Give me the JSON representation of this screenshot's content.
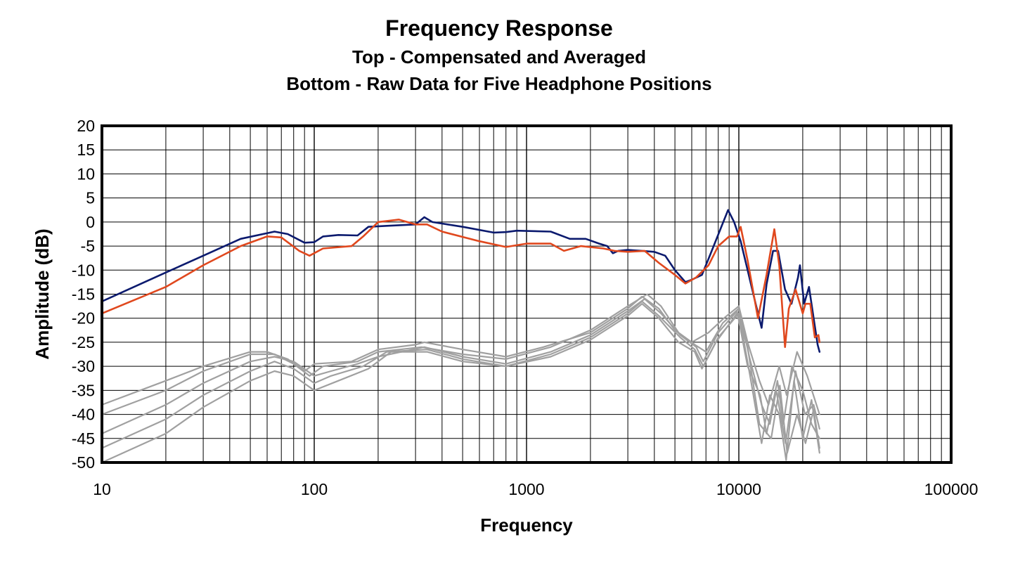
{
  "title": "Frequency Response",
  "subtitle_top": "Top -  Compensated and Averaged",
  "subtitle_bottom": "Bottom - Raw Data for Five Headphone Positions",
  "chart_data": {
    "type": "line",
    "xscale": "log",
    "xlabel": "Frequency",
    "ylabel": "Amplitude (dB)",
    "xlim": [
      10,
      100000
    ],
    "ylim": [
      -50,
      20
    ],
    "xticks": [
      "10",
      "100",
      "1000",
      "10000",
      "100000"
    ],
    "yticks": [
      "20",
      "15",
      "10",
      "5",
      "0",
      "-5",
      "-10",
      "-15",
      "-20",
      "-25",
      "-30",
      "-35",
      "-40",
      "-45",
      "-50"
    ],
    "grid": true,
    "series": [
      {
        "color": "#0b1a6e",
        "group": "compensated",
        "points": [
          [
            10,
            -16.5
          ],
          [
            20,
            -10.5
          ],
          [
            30,
            -7
          ],
          [
            45,
            -3.5
          ],
          [
            65,
            -2
          ],
          [
            75,
            -2.5
          ],
          [
            90,
            -4.3
          ],
          [
            100,
            -4.2
          ],
          [
            110,
            -3
          ],
          [
            130,
            -2.7
          ],
          [
            160,
            -2.8
          ],
          [
            180,
            -1
          ],
          [
            220,
            -0.8
          ],
          [
            300,
            -0.5
          ],
          [
            330,
            1
          ],
          [
            360,
            0
          ],
          [
            500,
            -1
          ],
          [
            700,
            -2.2
          ],
          [
            800,
            -2.1
          ],
          [
            900,
            -1.8
          ],
          [
            1300,
            -2
          ],
          [
            1600,
            -3.5
          ],
          [
            1900,
            -3.5
          ],
          [
            2200,
            -4.5
          ],
          [
            2400,
            -5
          ],
          [
            2550,
            -6.5
          ],
          [
            2700,
            -6
          ],
          [
            3000,
            -5.8
          ],
          [
            3500,
            -6
          ],
          [
            4000,
            -6.2
          ],
          [
            4500,
            -7
          ],
          [
            5000,
            -10
          ],
          [
            5600,
            -12.5
          ],
          [
            6000,
            -12
          ],
          [
            6700,
            -11
          ],
          [
            7300,
            -7
          ],
          [
            8100,
            -2
          ],
          [
            8900,
            2.5
          ],
          [
            9500,
            0
          ],
          [
            10200,
            -4
          ],
          [
            11000,
            -10
          ],
          [
            12000,
            -17
          ],
          [
            12800,
            -22
          ],
          [
            13500,
            -13
          ],
          [
            14500,
            -6
          ],
          [
            15300,
            -6
          ],
          [
            16500,
            -14
          ],
          [
            17700,
            -17
          ],
          [
            19000,
            -11.5
          ],
          [
            19400,
            -9
          ],
          [
            20300,
            -17
          ],
          [
            21400,
            -13.5
          ],
          [
            22500,
            -20
          ],
          [
            23500,
            -25.5
          ],
          [
            24000,
            -27
          ]
        ]
      },
      {
        "color": "#e0481e",
        "group": "compensated",
        "points": [
          [
            10,
            -19
          ],
          [
            20,
            -13.5
          ],
          [
            30,
            -9
          ],
          [
            45,
            -5
          ],
          [
            60,
            -3
          ],
          [
            70,
            -3.2
          ],
          [
            85,
            -6
          ],
          [
            95,
            -7
          ],
          [
            110,
            -5.5
          ],
          [
            150,
            -5
          ],
          [
            170,
            -3
          ],
          [
            200,
            0
          ],
          [
            250,
            0.5
          ],
          [
            300,
            -0.5
          ],
          [
            340,
            -0.5
          ],
          [
            400,
            -2
          ],
          [
            600,
            -4
          ],
          [
            800,
            -5.2
          ],
          [
            1000,
            -4.5
          ],
          [
            1300,
            -4.5
          ],
          [
            1500,
            -6
          ],
          [
            1800,
            -5
          ],
          [
            2300,
            -5.5
          ],
          [
            2600,
            -6
          ],
          [
            3000,
            -6.2
          ],
          [
            3600,
            -6
          ],
          [
            4200,
            -8.5
          ],
          [
            5000,
            -11
          ],
          [
            5600,
            -12.8
          ],
          [
            6300,
            -11.5
          ],
          [
            7200,
            -9
          ],
          [
            8000,
            -5
          ],
          [
            9000,
            -3
          ],
          [
            9800,
            -3
          ],
          [
            10200,
            -1
          ],
          [
            11000,
            -8
          ],
          [
            12300,
            -20
          ],
          [
            13500,
            -11
          ],
          [
            14700,
            -1.5
          ],
          [
            15500,
            -9
          ],
          [
            16500,
            -26
          ],
          [
            17200,
            -18
          ],
          [
            18500,
            -14
          ],
          [
            20000,
            -19
          ],
          [
            20600,
            -17
          ],
          [
            21700,
            -17
          ],
          [
            22800,
            -24
          ],
          [
            23700,
            -23.5
          ],
          [
            24000,
            -25
          ]
        ]
      },
      {
        "color": "#a0a0a0",
        "group": "raw",
        "points": [
          [
            10,
            -38
          ],
          [
            20,
            -33
          ],
          [
            30,
            -30
          ],
          [
            50,
            -27
          ],
          [
            60,
            -27
          ],
          [
            75,
            -28.5
          ],
          [
            90,
            -31
          ],
          [
            100,
            -29.5
          ],
          [
            150,
            -29
          ],
          [
            200,
            -26.5
          ],
          [
            300,
            -25.5
          ],
          [
            330,
            -25
          ],
          [
            500,
            -26.5
          ],
          [
            800,
            -28
          ],
          [
            1200,
            -26
          ],
          [
            2000,
            -23
          ],
          [
            3000,
            -18
          ],
          [
            3500,
            -15.5
          ],
          [
            4200,
            -18
          ],
          [
            5000,
            -22.5
          ],
          [
            6000,
            -25
          ],
          [
            7200,
            -23
          ],
          [
            8500,
            -20
          ],
          [
            10000,
            -17.5
          ],
          [
            11000,
            -25
          ],
          [
            12500,
            -33
          ],
          [
            13800,
            -38
          ],
          [
            15500,
            -30
          ],
          [
            16800,
            -36
          ],
          [
            18800,
            -27
          ],
          [
            21000,
            -32
          ],
          [
            24000,
            -40
          ]
        ]
      },
      {
        "color": "#a0a0a0",
        "group": "raw",
        "points": [
          [
            10,
            -40
          ],
          [
            20,
            -35
          ],
          [
            30,
            -31
          ],
          [
            50,
            -27.5
          ],
          [
            65,
            -27.5
          ],
          [
            80,
            -29.5
          ],
          [
            95,
            -32
          ],
          [
            110,
            -30
          ],
          [
            160,
            -29
          ],
          [
            200,
            -27
          ],
          [
            320,
            -26
          ],
          [
            500,
            -27.5
          ],
          [
            800,
            -28.5
          ],
          [
            1300,
            -26
          ],
          [
            2000,
            -22.5
          ],
          [
            3000,
            -17.5
          ],
          [
            3700,
            -15
          ],
          [
            4300,
            -17.5
          ],
          [
            5200,
            -23
          ],
          [
            6200,
            -25.5
          ],
          [
            7000,
            -27
          ],
          [
            8400,
            -21
          ],
          [
            10000,
            -18
          ],
          [
            11200,
            -28
          ],
          [
            12800,
            -38
          ],
          [
            14000,
            -42
          ],
          [
            15000,
            -35
          ],
          [
            16600,
            -46
          ],
          [
            18500,
            -31
          ],
          [
            20500,
            -40
          ],
          [
            22500,
            -38
          ],
          [
            24000,
            -43
          ]
        ]
      },
      {
        "color": "#a0a0a0",
        "group": "raw",
        "points": [
          [
            10,
            -44
          ],
          [
            20,
            -38
          ],
          [
            30,
            -33.5
          ],
          [
            50,
            -29
          ],
          [
            65,
            -28
          ],
          [
            80,
            -29
          ],
          [
            100,
            -32
          ],
          [
            120,
            -31
          ],
          [
            160,
            -29.5
          ],
          [
            200,
            -28
          ],
          [
            330,
            -26
          ],
          [
            500,
            -28
          ],
          [
            800,
            -29.5
          ],
          [
            1300,
            -27
          ],
          [
            2000,
            -23.5
          ],
          [
            3000,
            -18.5
          ],
          [
            3600,
            -16
          ],
          [
            4300,
            -19
          ],
          [
            5300,
            -23.5
          ],
          [
            6300,
            -26
          ],
          [
            6800,
            -29
          ],
          [
            8000,
            -23
          ],
          [
            9800,
            -18.5
          ],
          [
            11000,
            -30
          ],
          [
            12600,
            -36
          ],
          [
            13500,
            -44
          ],
          [
            15200,
            -33
          ],
          [
            16200,
            -42
          ],
          [
            17800,
            -30
          ],
          [
            20000,
            -35
          ],
          [
            22000,
            -42
          ],
          [
            24000,
            -45
          ]
        ]
      },
      {
        "color": "#a0a0a0",
        "group": "raw",
        "points": [
          [
            10,
            -47
          ],
          [
            20,
            -41
          ],
          [
            30,
            -36
          ],
          [
            50,
            -31
          ],
          [
            65,
            -29
          ],
          [
            80,
            -30.5
          ],
          [
            100,
            -33.5
          ],
          [
            120,
            -32
          ],
          [
            170,
            -30
          ],
          [
            220,
            -27
          ],
          [
            340,
            -26.5
          ],
          [
            500,
            -28.5
          ],
          [
            800,
            -30
          ],
          [
            1300,
            -27.5
          ],
          [
            2000,
            -24
          ],
          [
            3000,
            -19
          ],
          [
            3500,
            -16.5
          ],
          [
            4200,
            -19.5
          ],
          [
            5300,
            -24
          ],
          [
            6200,
            -26.5
          ],
          [
            6800,
            -30
          ],
          [
            8000,
            -24
          ],
          [
            10000,
            -19
          ],
          [
            11300,
            -32
          ],
          [
            12800,
            -46
          ],
          [
            14000,
            -36
          ],
          [
            15500,
            -40
          ],
          [
            16700,
            -49.5
          ],
          [
            18200,
            -33
          ],
          [
            20000,
            -45
          ],
          [
            22000,
            -37
          ],
          [
            24000,
            -48
          ]
        ]
      },
      {
        "color": "#a0a0a0",
        "group": "raw",
        "points": [
          [
            10,
            -50
          ],
          [
            20,
            -44
          ],
          [
            30,
            -38.5
          ],
          [
            50,
            -33
          ],
          [
            65,
            -31
          ],
          [
            80,
            -32
          ],
          [
            100,
            -35
          ],
          [
            130,
            -33
          ],
          [
            180,
            -30.5
          ],
          [
            230,
            -27
          ],
          [
            340,
            -27
          ],
          [
            500,
            -29
          ],
          [
            800,
            -30
          ],
          [
            1300,
            -28
          ],
          [
            2000,
            -24.5
          ],
          [
            3000,
            -19.5
          ],
          [
            3500,
            -17
          ],
          [
            4200,
            -20
          ],
          [
            5200,
            -25
          ],
          [
            6200,
            -27
          ],
          [
            6700,
            -30.5
          ],
          [
            7800,
            -25
          ],
          [
            9800,
            -19
          ],
          [
            11000,
            -26
          ],
          [
            12500,
            -42
          ],
          [
            14200,
            -45
          ],
          [
            15600,
            -34
          ],
          [
            16900,
            -48
          ],
          [
            18800,
            -40
          ],
          [
            20600,
            -46
          ],
          [
            22500,
            -39
          ],
          [
            24000,
            -47
          ]
        ]
      }
    ]
  }
}
